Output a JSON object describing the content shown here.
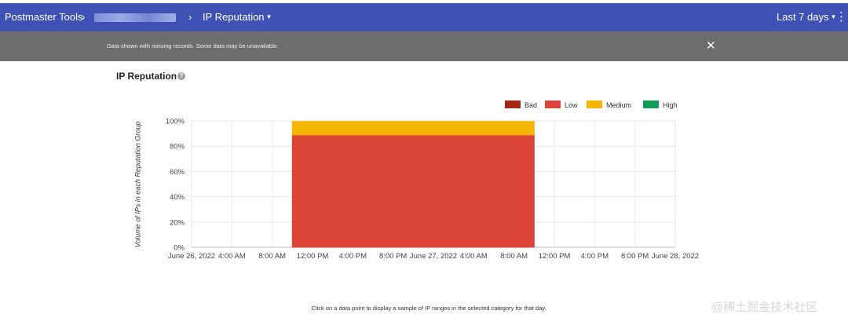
{
  "header": {
    "app_name": "Postmaster Tools",
    "page_title": "IP Reputation",
    "date_range": "Last 7 days",
    "more_icon": "more-vert-icon"
  },
  "notice": {
    "message": "Data shown with missing records. Some data may be unavailable."
  },
  "section": {
    "title": "IP Reputation",
    "help_icon": "help-circle-icon"
  },
  "chart_data": {
    "type": "area",
    "stacked": true,
    "ylabel": "Volume of IPs in each Reputation Group",
    "ylim": [
      0,
      100
    ],
    "y_ticks": [
      "0%",
      "20%",
      "40%",
      "60%",
      "80%",
      "100%"
    ],
    "x_ticks": [
      "June 26, 2022",
      "4:00 AM",
      "8:00 AM",
      "12:00 PM",
      "4:00 PM",
      "8:00 PM",
      "June 27, 2022",
      "4:00 AM",
      "8:00 AM",
      "12:00 PM",
      "4:00 PM",
      "8:00 PM",
      "June 28, 2022"
    ],
    "x_range_hours": [
      0,
      48
    ],
    "data_span_hours": [
      10,
      34
    ],
    "legend_position": "top-right",
    "grid": true,
    "series": [
      {
        "name": "Bad",
        "color": "#a52714",
        "value": 0
      },
      {
        "name": "Low",
        "color": "#db4437",
        "value": 89
      },
      {
        "name": "Medium",
        "color": "#f4b400",
        "value": 11
      },
      {
        "name": "High",
        "color": "#0f9d58",
        "value": 0
      }
    ]
  },
  "footer": {
    "hint": "Click on a data point to display a sample of IP ranges in the selected category for that day."
  },
  "watermark": "@稀土掘金技术社区"
}
